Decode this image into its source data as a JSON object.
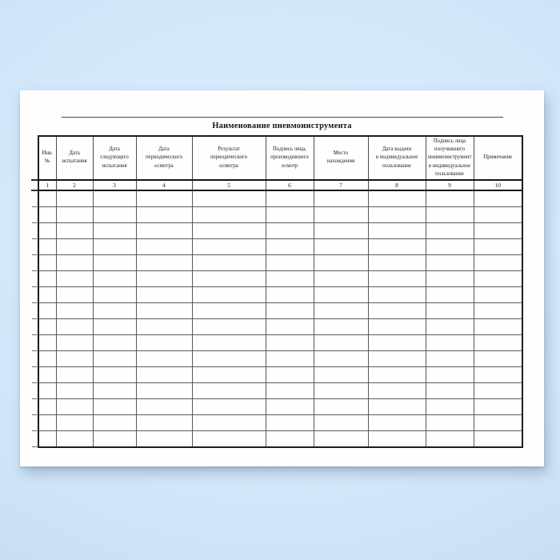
{
  "document": {
    "title": "Наименование пневмоинструмента"
  },
  "table": {
    "columns": [
      {
        "num": "1",
        "label": "Инв.\n№"
      },
      {
        "num": "2",
        "label": "Дата\nиспытания"
      },
      {
        "num": "3",
        "label": "Дата\nследующего\nиспытания"
      },
      {
        "num": "4",
        "label": "Дата\nпериодического\nосмотра"
      },
      {
        "num": "5",
        "label": "Результат\nпериодического\nосмотра"
      },
      {
        "num": "6",
        "label": "Подпись лица,\nпроизводившего\nосмотр"
      },
      {
        "num": "7",
        "label": "Место\nнахождения"
      },
      {
        "num": "8",
        "label": "Дата выдачи\nв индивидуальное\nпользование"
      },
      {
        "num": "9",
        "label": "Подпись лица\nполучившего\nпневмоинструмент\nв индивидуальное\nпользование"
      },
      {
        "num": "10",
        "label": "Примечание"
      }
    ],
    "empty_rows": 16,
    "empty_cell": ""
  }
}
